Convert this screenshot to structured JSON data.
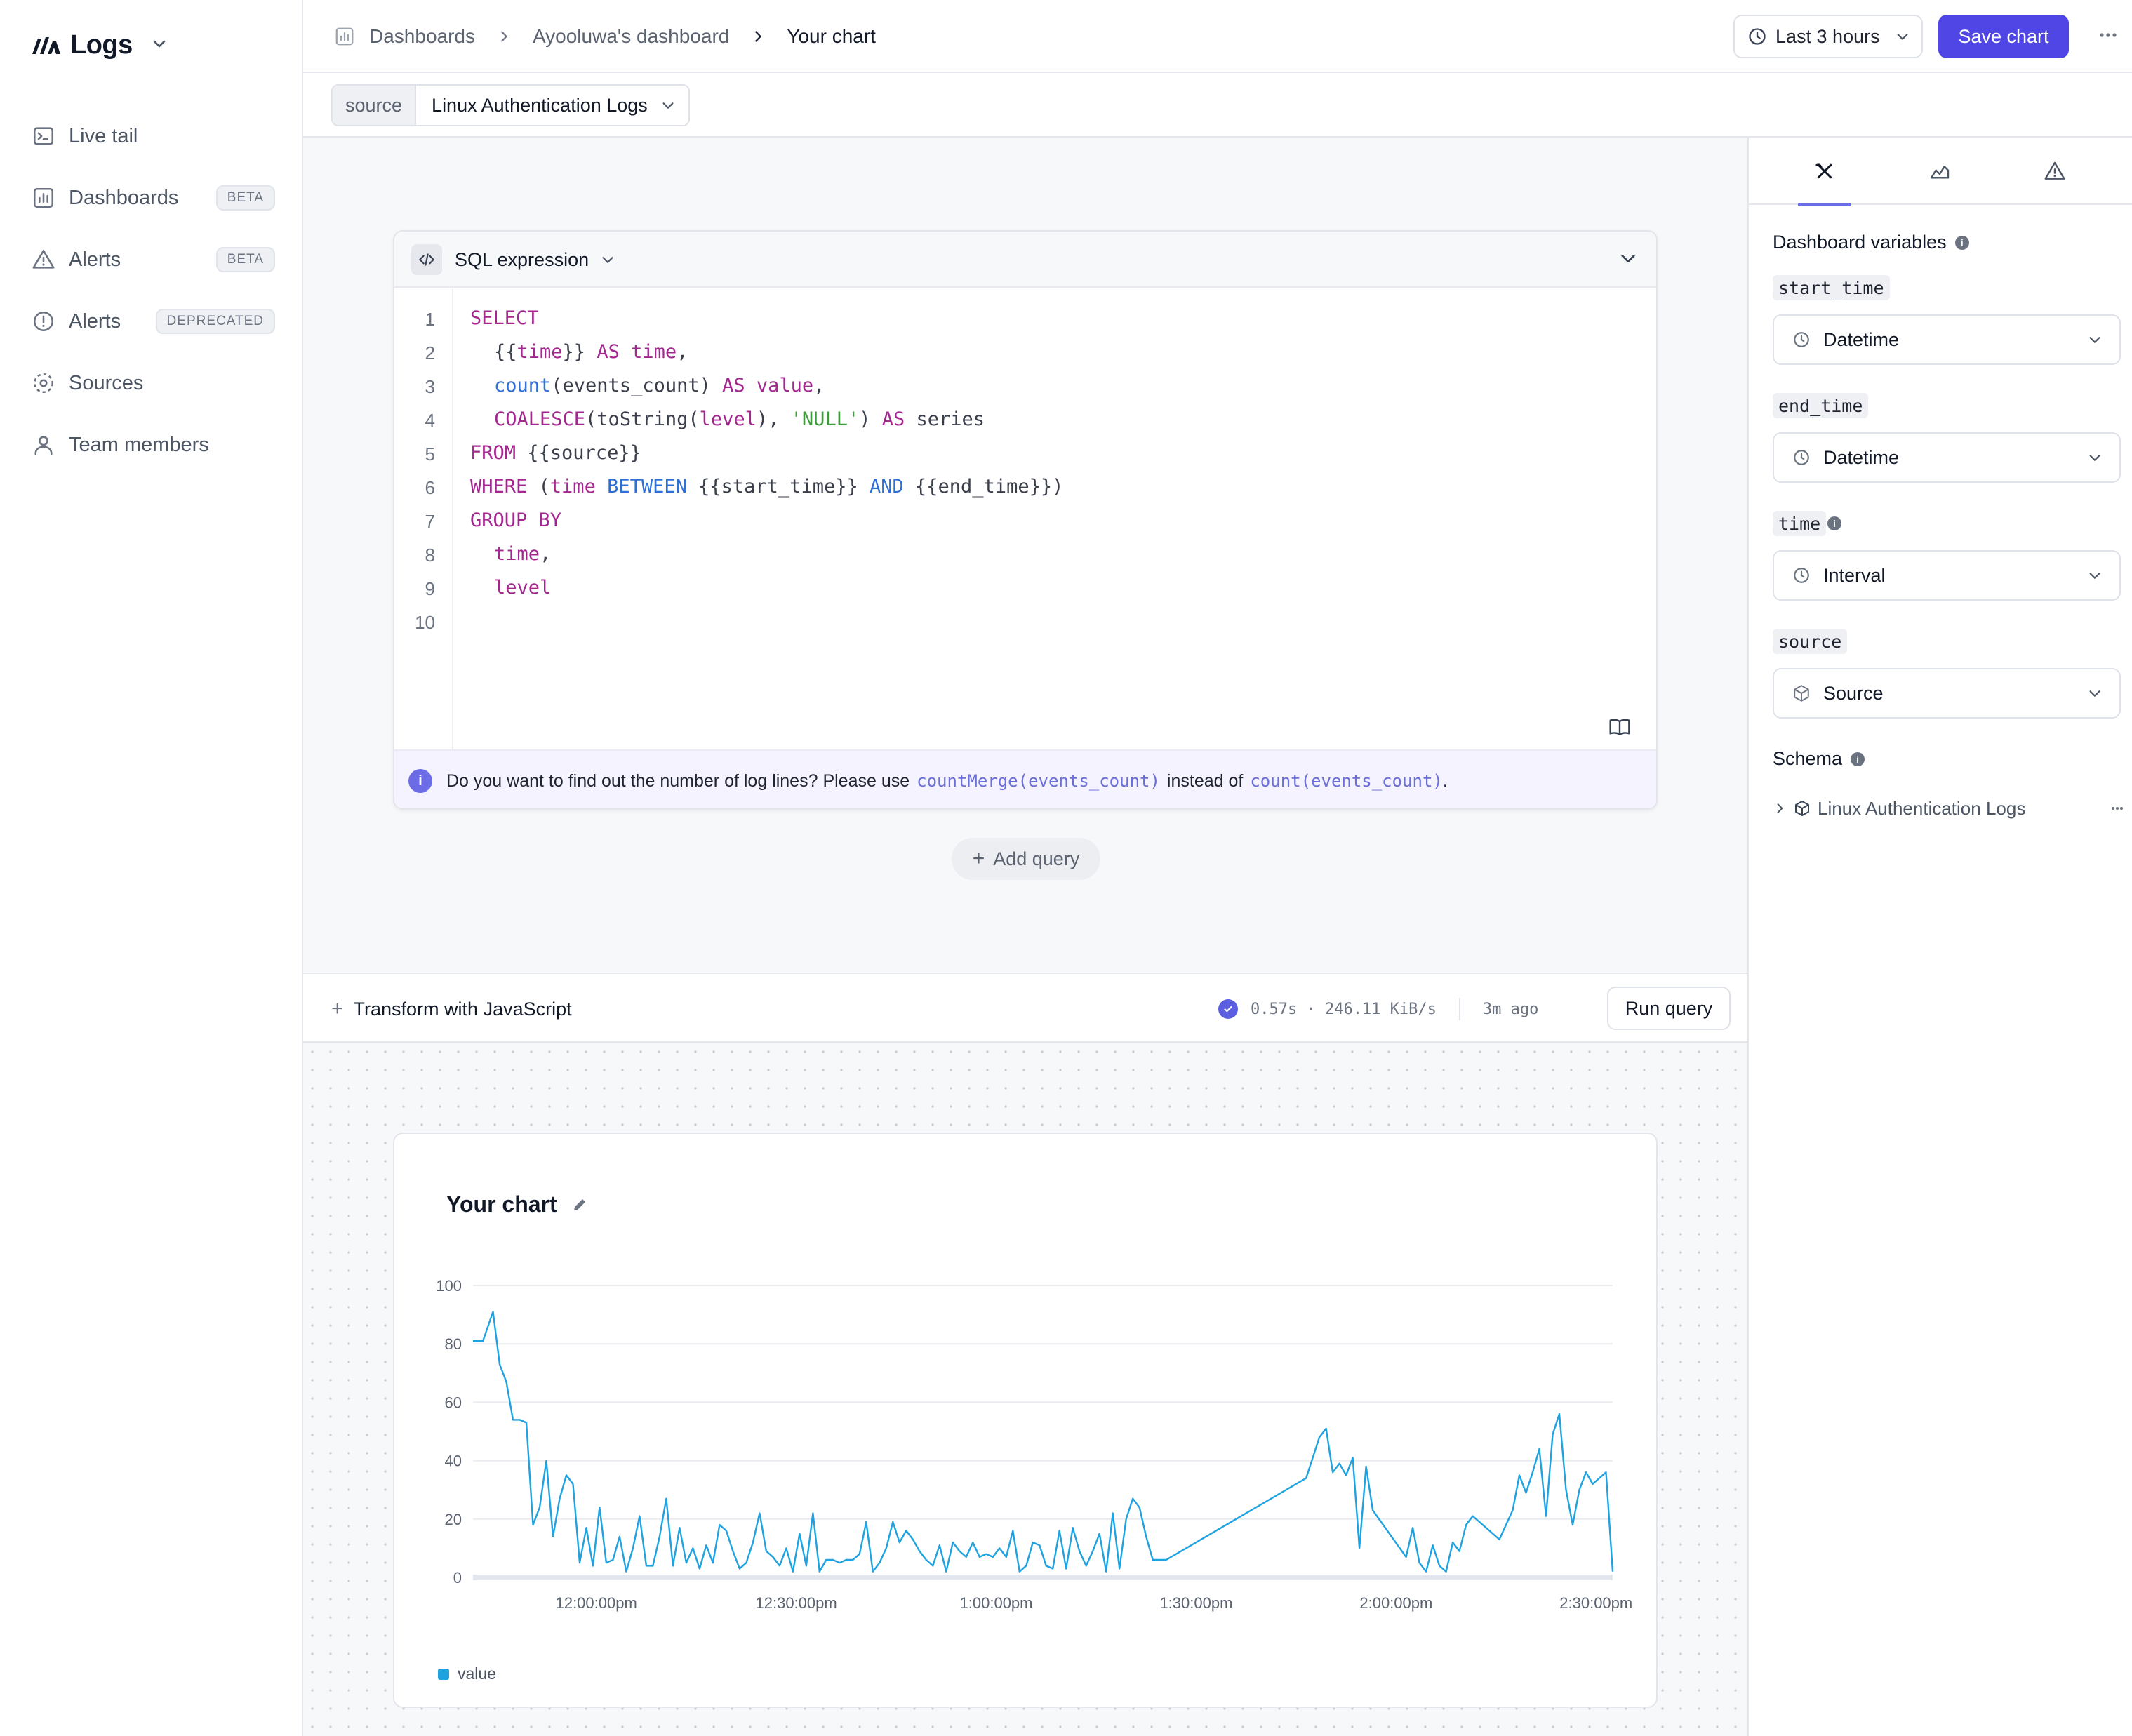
{
  "app": {
    "name": "Logs",
    "nav": [
      {
        "label": "Live tail",
        "icon": "terminal-icon",
        "badge": ""
      },
      {
        "label": "Dashboards",
        "icon": "bar-chart-icon",
        "badge": "BETA"
      },
      {
        "label": "Alerts",
        "icon": "warning-triangle-icon",
        "badge": "BETA"
      },
      {
        "label": "Alerts",
        "icon": "alert-circle-icon",
        "badge": "DEPRECATED"
      },
      {
        "label": "Sources",
        "icon": "sources-icon",
        "badge": ""
      },
      {
        "label": "Team members",
        "icon": "user-icon",
        "badge": ""
      }
    ]
  },
  "header": {
    "breadcrumbs": [
      "Dashboards",
      "Ayooluwa's dashboard",
      "Your chart"
    ],
    "time_range": "Last 3 hours",
    "save_label": "Save chart"
  },
  "source_selector": {
    "key": "source",
    "value": "Linux Authentication Logs"
  },
  "editor": {
    "mode": "SQL expression",
    "line_numbers": [
      "1",
      "2",
      "3",
      "4",
      "5",
      "6",
      "7",
      "8",
      "9",
      "10"
    ],
    "code": {
      "l1_select": "SELECT",
      "l2_a": "{{",
      "l2_time": "time",
      "l2_b": "}} ",
      "l2_as": "AS",
      "l2_sp": " ",
      "l2_alias": "time",
      "l2_comma": ",",
      "l3_fn": "count",
      "l3_args": "(events_count) ",
      "l3_as": "AS",
      "l3_sp": " ",
      "l3_alias": "value",
      "l3_comma": ",",
      "l4_fn": "COALESCE",
      "l4_a": "(toString(",
      "l4_level": "level",
      "l4_b": "), ",
      "l4_str": "'NULL'",
      "l4_c": ") ",
      "l4_as": "AS",
      "l4_d": " series",
      "l5_from": "FROM",
      "l5_rest": " {{source}}",
      "l6_where": "WHERE",
      "l6_a": " (",
      "l6_time": "time",
      "l6_sp": " ",
      "l6_between": "BETWEEN",
      "l6_b": " {{start_time}} ",
      "l6_and": "AND",
      "l6_c": " {{end_time}})",
      "l7_group": "GROUP BY",
      "l8_time": "time",
      "l8_comma": ",",
      "l9_level": "level"
    },
    "hint": {
      "prefix": "Do you want to find out the number of log lines? Please use",
      "suggested": "countMerge(events_count)",
      "middle": "instead of",
      "current": "count(events_count)",
      "suffix": "."
    }
  },
  "add_query_label": "Add query",
  "run_bar": {
    "transform_label": "Transform with JavaScript",
    "stats": "0.57s · 246.11 KiB/s",
    "ago": "3m ago",
    "run_label": "Run query"
  },
  "chart_card": {
    "title": "Your chart",
    "legend": "value"
  },
  "chart_data": {
    "type": "line",
    "title": "Your chart",
    "xlabel": "",
    "ylabel": "",
    "ylim": [
      0,
      100
    ],
    "y_ticks": [
      0,
      20,
      40,
      60,
      80,
      100
    ],
    "x_ticks": [
      "12:00:00pm",
      "12:30:00pm",
      "1:00:00pm",
      "1:30:00pm",
      "2:00:00pm",
      "2:30:00pm"
    ],
    "x_unit": "minutes after 12:00:00pm",
    "grid": true,
    "legend_position": "bottom-left",
    "series": [
      {
        "name": "value",
        "color": "#1fa2e0",
        "points": [
          [
            -18.5,
            81
          ],
          [
            -17,
            81
          ],
          [
            -15.5,
            91
          ],
          [
            -14.5,
            73
          ],
          [
            -13.5,
            67
          ],
          [
            -12.5,
            54
          ],
          [
            -11.5,
            54
          ],
          [
            -10.5,
            53
          ],
          [
            -9.5,
            18
          ],
          [
            -8.5,
            24
          ],
          [
            -7.5,
            40
          ],
          [
            -6.5,
            14
          ],
          [
            -5.5,
            27
          ],
          [
            -4.5,
            35
          ],
          [
            -3.5,
            32
          ],
          [
            -2.5,
            5
          ],
          [
            -1.5,
            17
          ],
          [
            -0.5,
            4
          ],
          [
            0.5,
            24
          ],
          [
            1.5,
            5
          ],
          [
            2.5,
            6
          ],
          [
            3.5,
            14
          ],
          [
            4.5,
            2
          ],
          [
            5.5,
            10
          ],
          [
            6.5,
            21
          ],
          [
            7.5,
            4
          ],
          [
            8.5,
            4
          ],
          [
            9.5,
            14
          ],
          [
            10.5,
            27
          ],
          [
            11.5,
            4
          ],
          [
            12.5,
            17
          ],
          [
            13.5,
            5
          ],
          [
            14.5,
            10
          ],
          [
            15.5,
            3
          ],
          [
            16.5,
            11
          ],
          [
            17.5,
            5
          ],
          [
            18.5,
            18
          ],
          [
            19.5,
            16
          ],
          [
            20.5,
            9
          ],
          [
            21.5,
            3
          ],
          [
            22.5,
            5
          ],
          [
            23.5,
            12
          ],
          [
            24.5,
            22
          ],
          [
            25.5,
            9
          ],
          [
            26.5,
            7
          ],
          [
            27.5,
            4
          ],
          [
            28.5,
            10
          ],
          [
            29.5,
            2
          ],
          [
            30.5,
            15
          ],
          [
            31.5,
            4
          ],
          [
            32.5,
            22
          ],
          [
            33.5,
            2
          ],
          [
            34.5,
            6
          ],
          [
            35.5,
            6
          ],
          [
            36.5,
            5
          ],
          [
            37.5,
            6
          ],
          [
            38.5,
            6
          ],
          [
            39.5,
            8
          ],
          [
            40.5,
            19
          ],
          [
            41.5,
            2
          ],
          [
            42.5,
            5
          ],
          [
            43.5,
            10
          ],
          [
            44.5,
            19
          ],
          [
            45.5,
            12
          ],
          [
            46.5,
            16
          ],
          [
            47.5,
            13
          ],
          [
            48.5,
            9
          ],
          [
            49.5,
            6
          ],
          [
            50.5,
            4
          ],
          [
            51.5,
            11
          ],
          [
            52.5,
            2
          ],
          [
            53.5,
            12
          ],
          [
            54.5,
            9
          ],
          [
            55.5,
            7
          ],
          [
            56.5,
            12
          ],
          [
            57.5,
            7
          ],
          [
            58.5,
            8
          ],
          [
            59.5,
            7
          ],
          [
            60.5,
            10
          ],
          [
            61.5,
            7
          ],
          [
            62.5,
            16
          ],
          [
            63.5,
            2
          ],
          [
            64.5,
            4
          ],
          [
            65.5,
            12
          ],
          [
            66.5,
            11
          ],
          [
            67.5,
            4
          ],
          [
            68.5,
            3
          ],
          [
            69.5,
            16
          ],
          [
            70.5,
            3
          ],
          [
            71.5,
            17
          ],
          [
            72.5,
            9
          ],
          [
            73.5,
            4
          ],
          [
            74.5,
            9
          ],
          [
            75.5,
            15
          ],
          [
            76.5,
            2
          ],
          [
            77.5,
            22
          ],
          [
            78.5,
            3
          ],
          [
            79.5,
            20
          ],
          [
            80.5,
            27
          ],
          [
            81.5,
            24
          ],
          [
            82.5,
            14
          ],
          [
            83.5,
            6
          ],
          [
            85.5,
            6
          ],
          [
            106.5,
            34
          ],
          [
            108.5,
            48
          ],
          [
            109.5,
            51
          ],
          [
            110.5,
            36
          ],
          [
            111.5,
            39
          ],
          [
            112.5,
            35
          ],
          [
            113.5,
            41
          ],
          [
            114.5,
            10
          ],
          [
            115.5,
            38
          ],
          [
            116.5,
            23
          ],
          [
            121.5,
            7
          ],
          [
            122.5,
            17
          ],
          [
            123.5,
            5
          ],
          [
            124.5,
            2
          ],
          [
            125.5,
            11
          ],
          [
            126.5,
            4
          ],
          [
            127.5,
            2
          ],
          [
            128.5,
            12
          ],
          [
            129.5,
            9
          ],
          [
            130.5,
            18
          ],
          [
            131.5,
            21
          ],
          [
            135.5,
            13
          ],
          [
            137.5,
            23
          ],
          [
            138.5,
            35
          ],
          [
            139.5,
            29
          ],
          [
            140.5,
            36
          ],
          [
            141.5,
            44
          ],
          [
            142.5,
            21
          ],
          [
            143.5,
            49
          ],
          [
            144.5,
            56
          ],
          [
            145.5,
            30
          ],
          [
            146.5,
            18
          ],
          [
            147.5,
            30
          ],
          [
            148.5,
            36
          ],
          [
            149.5,
            32
          ],
          [
            151.5,
            36
          ],
          [
            152.5,
            2
          ]
        ]
      }
    ]
  },
  "right_panel": {
    "tabs": [
      "variable-icon",
      "area-chart-icon",
      "warning-triangle-icon"
    ],
    "dashboard_variables_title": "Dashboard variables",
    "variables": [
      {
        "name": "start_time",
        "type": "Datetime",
        "icon": "clock-icon"
      },
      {
        "name": "end_time",
        "type": "Datetime",
        "icon": "clock-icon"
      },
      {
        "name": "time",
        "type": "Interval",
        "icon": "clock-icon"
      },
      {
        "name": "source",
        "type": "Source",
        "icon": "cube-icon"
      }
    ],
    "schema_title": "Schema",
    "schema_items": [
      "Linux Authentication Logs"
    ]
  }
}
